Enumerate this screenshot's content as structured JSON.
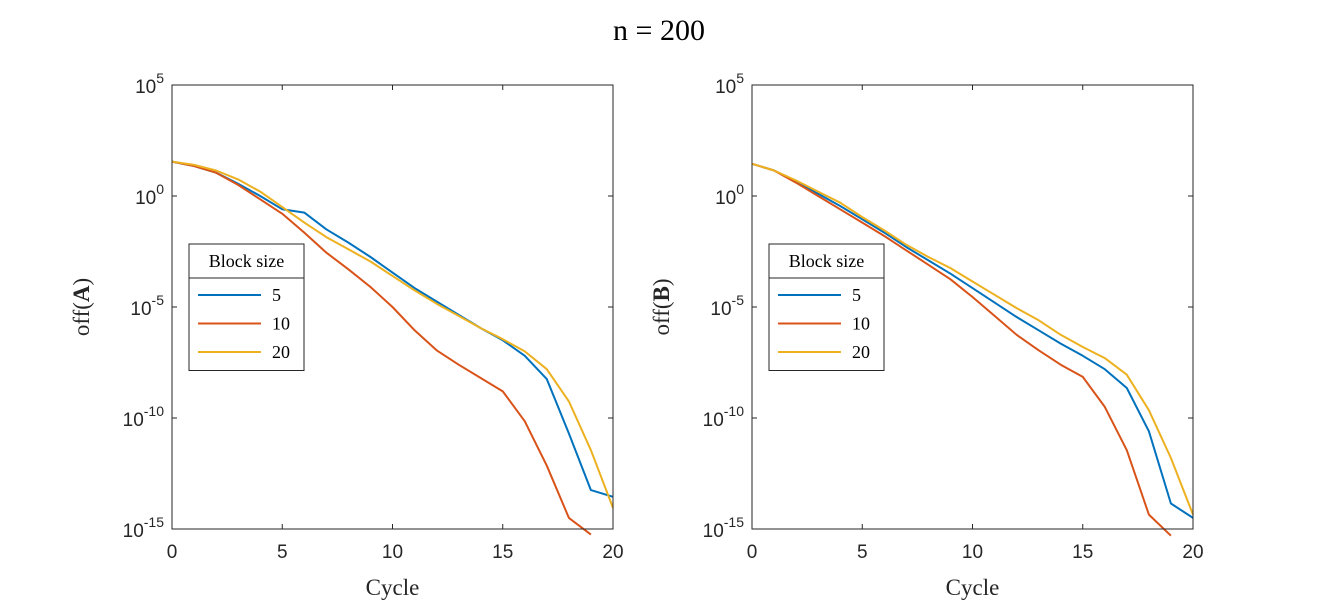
{
  "figure_title": "n = 200",
  "colors": {
    "block_5": "#0072BD",
    "block_10": "#D95319",
    "block_20": "#EDB120",
    "axes": "#262626"
  },
  "chart_data": [
    {
      "type": "line",
      "id": "A",
      "title": "",
      "xlabel": "Cycle",
      "ylabel_prefix": "off(",
      "ylabel_bold": "A",
      "ylabel_suffix": ")",
      "xlim": [
        0,
        20
      ],
      "ylim_log10": [
        -15,
        5
      ],
      "yscale": "log",
      "grid": false,
      "xticks": [
        0,
        5,
        10,
        15,
        20
      ],
      "xtick_labels": [
        "0",
        "5",
        "10",
        "15",
        "20"
      ],
      "yticks_exp": [
        5,
        0,
        -5,
        -10,
        -15
      ],
      "ytick_base": "10",
      "ytick_exps": [
        "5",
        "0",
        "-5",
        "-10",
        "-15"
      ],
      "legend_title": "Block size",
      "legend_position": "center-left",
      "series": [
        {
          "name": "5",
          "color": "#0072BD",
          "x": [
            0,
            1,
            2,
            3,
            4,
            5,
            6,
            7,
            8,
            9,
            10,
            11,
            12,
            13,
            14,
            15,
            16,
            17,
            18,
            19,
            20
          ],
          "log10y": [
            1.55,
            1.35,
            1.05,
            0.55,
            0,
            -0.6,
            -0.75,
            -1.5,
            -2.1,
            -2.75,
            -3.45,
            -4.15,
            -4.75,
            -5.35,
            -5.95,
            -6.5,
            -7.2,
            -8.25,
            -10.7,
            -13.25,
            -13.55
          ]
        },
        {
          "name": "10",
          "color": "#D95319",
          "x": [
            0,
            1,
            2,
            3,
            4,
            5,
            6,
            7,
            8,
            9,
            10,
            11,
            12,
            13,
            14,
            15,
            16,
            17,
            18,
            19
          ],
          "log10y": [
            1.55,
            1.35,
            1.05,
            0.5,
            -0.15,
            -0.8,
            -1.65,
            -2.55,
            -3.3,
            -4.1,
            -5,
            -6.05,
            -6.95,
            -7.6,
            -8.2,
            -8.8,
            -10.15,
            -12.15,
            -14.5,
            -15.25
          ]
        },
        {
          "name": "20",
          "color": "#EDB120",
          "x": [
            0,
            1,
            2,
            3,
            4,
            5,
            6,
            7,
            8,
            9,
            10,
            11,
            12,
            13,
            14,
            15,
            16,
            17,
            18,
            19,
            20
          ],
          "log10y": [
            1.55,
            1.4,
            1.15,
            0.75,
            0.2,
            -0.5,
            -1.2,
            -1.85,
            -2.4,
            -2.95,
            -3.6,
            -4.25,
            -4.85,
            -5.4,
            -5.95,
            -6.45,
            -7.0,
            -7.8,
            -9.25,
            -11.45,
            -14.05
          ]
        }
      ]
    },
    {
      "type": "line",
      "id": "B",
      "title": "",
      "xlabel": "Cycle",
      "ylabel_prefix": "off(",
      "ylabel_bold": "B",
      "ylabel_suffix": ")",
      "xlim": [
        0,
        20
      ],
      "ylim_log10": [
        -15,
        5
      ],
      "yscale": "log",
      "grid": false,
      "xticks": [
        0,
        5,
        10,
        15,
        20
      ],
      "xtick_labels": [
        "0",
        "5",
        "10",
        "15",
        "20"
      ],
      "yticks_exp": [
        5,
        0,
        -5,
        -10,
        -15
      ],
      "ytick_base": "10",
      "ytick_exps": [
        "5",
        "0",
        "-5",
        "-10",
        "-15"
      ],
      "legend_title": "Block size",
      "legend_position": "center-left",
      "series": [
        {
          "name": "5",
          "color": "#0072BD",
          "x": [
            0,
            1,
            2,
            3,
            4,
            5,
            6,
            7,
            8,
            9,
            10,
            11,
            12,
            13,
            14,
            15,
            16,
            17,
            18,
            19,
            20
          ],
          "log10y": [
            1.45,
            1.15,
            0.65,
            0.1,
            -0.45,
            -1.05,
            -1.65,
            -2.3,
            -2.9,
            -3.5,
            -4.15,
            -4.8,
            -5.45,
            -6.05,
            -6.65,
            -7.2,
            -7.8,
            -8.65,
            -10.6,
            -13.85,
            -14.5
          ]
        },
        {
          "name": "10",
          "color": "#D95319",
          "x": [
            0,
            1,
            2,
            3,
            4,
            5,
            6,
            7,
            8,
            9,
            10,
            11,
            12,
            13,
            14,
            15,
            16,
            17,
            18,
            19
          ],
          "log10y": [
            1.45,
            1.15,
            0.6,
            0,
            -0.6,
            -1.2,
            -1.8,
            -2.45,
            -3.1,
            -3.75,
            -4.55,
            -5.4,
            -6.25,
            -6.95,
            -7.6,
            -8.15,
            -9.5,
            -11.45,
            -14.35,
            -15.3
          ]
        },
        {
          "name": "20",
          "color": "#EDB120",
          "x": [
            0,
            1,
            2,
            3,
            4,
            5,
            6,
            7,
            8,
            9,
            10,
            11,
            12,
            13,
            14,
            15,
            16,
            17,
            18,
            19,
            20
          ],
          "log10y": [
            1.45,
            1.15,
            0.7,
            0.2,
            -0.3,
            -0.95,
            -1.55,
            -2.2,
            -2.75,
            -3.25,
            -3.85,
            -4.45,
            -5.05,
            -5.6,
            -6.25,
            -6.8,
            -7.3,
            -8.05,
            -9.65,
            -11.8,
            -14.35
          ]
        }
      ]
    }
  ]
}
